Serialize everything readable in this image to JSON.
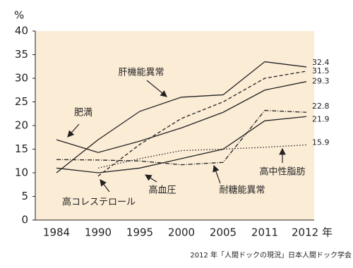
{
  "chart_data": {
    "type": "line",
    "y_label": "%",
    "source": "2012 年「人間ドックの現況」日本人間ドック学会",
    "categories": [
      "1984",
      "1990",
      "1995",
      "2000",
      "2005",
      "2011",
      "2012 年"
    ],
    "ylim": [
      0,
      40
    ],
    "yticks": [
      0,
      5,
      10,
      15,
      20,
      25,
      30,
      35,
      40
    ],
    "plot_background": "#fbecd6",
    "series": [
      {
        "name": "肝機能異常",
        "color": "#222222",
        "line_style": "solid",
        "values": [
          10,
          17,
          23,
          26,
          26.5,
          33.5,
          32.4
        ]
      },
      {
        "name": "高コレステロール",
        "color": "#222222",
        "line_style": "dashed",
        "values": [
          null,
          9.3,
          16,
          21.5,
          25,
          30,
          31.5
        ]
      },
      {
        "name": "肥満",
        "color": "#222222",
        "line_style": "solid",
        "values": [
          17,
          14.3,
          16.7,
          19.5,
          22.8,
          27.5,
          29.3
        ]
      },
      {
        "name": "耐糖能異常",
        "color": "#222222",
        "line_style": "dashdot",
        "values": [
          12.8,
          12.7,
          12.5,
          11.7,
          12.2,
          23.2,
          22.8
        ]
      },
      {
        "name": "高血圧",
        "color": "#222222",
        "line_style": "solid",
        "values": [
          11,
          10,
          11,
          13,
          15,
          21,
          21.9
        ]
      },
      {
        "name": "高中性脂肪",
        "color": "#222222",
        "line_style": "dotted",
        "values": [
          null,
          11,
          13,
          14.7,
          15,
          15.4,
          15.9
        ]
      }
    ]
  }
}
